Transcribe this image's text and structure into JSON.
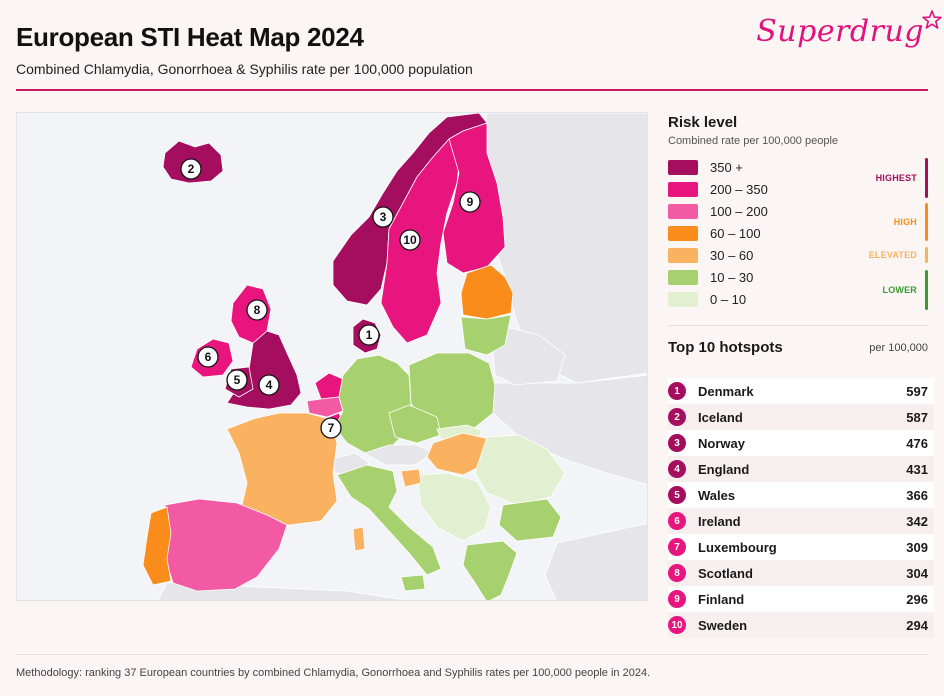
{
  "header": {
    "title": "European STI Heat Map 2024",
    "subtitle": "Combined Chlamydia, Gonorrhoea & Syphilis rate per 100,000 population",
    "brand": "Superdrug"
  },
  "colors": {
    "highest": "#a50d5e",
    "very_high": "#e8157f",
    "high": "#f25aa3",
    "elevated_orange": "#f98c1a",
    "elevated_light": "#fbb260",
    "lower_green": "#a7d16e",
    "lowest_green": "#e3efd1",
    "no_data": "#e6e6ea",
    "tier_highest": "#a50d5e",
    "tier_high": "#f98c1a",
    "tier_elevated": "#f7b35c",
    "tier_lower": "#3a9a34"
  },
  "legend": {
    "title": "Risk level",
    "subtitle": "Combined rate per 100,000 people",
    "bins": [
      {
        "label": "350 +",
        "color": "#a50d5e"
      },
      {
        "label": "200 – 350",
        "color": "#e8157f"
      },
      {
        "label": "100 – 200",
        "color": "#f25aa3"
      },
      {
        "label": "60 – 100",
        "color": "#f98c1a"
      },
      {
        "label": "30 – 60",
        "color": "#fbb260"
      },
      {
        "label": "10 – 30",
        "color": "#a7d16e"
      },
      {
        "label": "0 – 10",
        "color": "#e3efd1"
      }
    ],
    "tiers": [
      {
        "label": "HIGHEST",
        "color": "#a50d5e"
      },
      {
        "label": "HIGH",
        "color": "#f98c1a"
      },
      {
        "label": "ELEVATED",
        "color": "#f7b35c"
      },
      {
        "label": "LOWER",
        "color": "#3a9a34"
      }
    ]
  },
  "top10": {
    "title": "Top 10 hotspots",
    "unit": "per 100,000",
    "items": [
      {
        "rank": "1",
        "name": "Denmark",
        "value": "597",
        "color": "#a50d5e"
      },
      {
        "rank": "2",
        "name": "Iceland",
        "value": "587",
        "color": "#a50d5e"
      },
      {
        "rank": "3",
        "name": "Norway",
        "value": "476",
        "color": "#a50d5e"
      },
      {
        "rank": "4",
        "name": "England",
        "value": "431",
        "color": "#a50d5e"
      },
      {
        "rank": "5",
        "name": "Wales",
        "value": "366",
        "color": "#a50d5e"
      },
      {
        "rank": "6",
        "name": "Ireland",
        "value": "342",
        "color": "#e8157f"
      },
      {
        "rank": "7",
        "name": "Luxembourg",
        "value": "309",
        "color": "#e8157f"
      },
      {
        "rank": "8",
        "name": "Scotland",
        "value": "304",
        "color": "#e8157f"
      },
      {
        "rank": "9",
        "name": "Finland",
        "value": "296",
        "color": "#e8157f"
      },
      {
        "rank": "10",
        "name": "Sweden",
        "value": "294",
        "color": "#e8157f"
      }
    ]
  },
  "map": {
    "markers": [
      "1",
      "2",
      "3",
      "4",
      "5",
      "6",
      "7",
      "8",
      "9",
      "10"
    ]
  },
  "footer": {
    "methodology": "Methodology: ranking 37 European countries by combined Chlamydia, Gonorrhoea and Syphilis rates per 100,000 people in 2024."
  }
}
